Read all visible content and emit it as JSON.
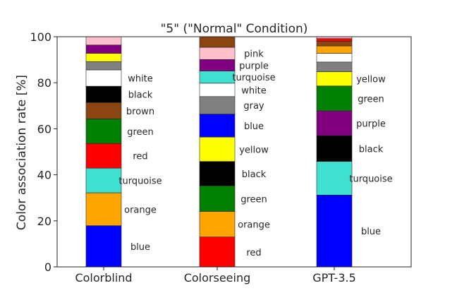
{
  "chart_data": {
    "type": "bar",
    "stacked": true,
    "title": "\"5\" (\"Normal\" Condition)",
    "xlabel": "",
    "ylabel": "Color association rate [%]",
    "ylim": [
      0,
      100
    ],
    "yticks": [
      0,
      20,
      40,
      60,
      80,
      100
    ],
    "grid": false,
    "categories": [
      "Colorblind",
      "Colorseeing",
      "GPT-3.5"
    ],
    "bars": [
      {
        "category": "Colorblind",
        "segments": [
          {
            "color_name": "blue",
            "value": 17.9,
            "color": "#0000ff",
            "label": "blue"
          },
          {
            "color_name": "orange",
            "value": 14.3,
            "color": "#ffa500",
            "label": "orange"
          },
          {
            "color_name": "turquoise",
            "value": 10.7,
            "color": "#40e0d0",
            "label": "turquoise"
          },
          {
            "color_name": "red",
            "value": 10.7,
            "color": "#ff0000",
            "label": "red"
          },
          {
            "color_name": "green",
            "value": 10.7,
            "color": "#008000",
            "label": "green"
          },
          {
            "color_name": "brown",
            "value": 7.1,
            "color": "#8b4513",
            "label": "brown"
          },
          {
            "color_name": "black",
            "value": 7.1,
            "color": "#000000",
            "label": "black"
          },
          {
            "color_name": "white",
            "value": 7.1,
            "color": "#ffffff",
            "label": "white"
          },
          {
            "color_name": "gray",
            "value": 3.6,
            "color": "#808080",
            "label": ""
          },
          {
            "color_name": "yellow",
            "value": 3.6,
            "color": "#ffff00",
            "label": ""
          },
          {
            "color_name": "purple",
            "value": 3.6,
            "color": "#800080",
            "label": ""
          },
          {
            "color_name": "pink",
            "value": 3.6,
            "color": "#ffc0cb",
            "label": ""
          }
        ]
      },
      {
        "category": "Colorseeing",
        "segments": [
          {
            "color_name": "red",
            "value": 13.0,
            "color": "#ff0000",
            "label": "red"
          },
          {
            "color_name": "orange",
            "value": 11.1,
            "color": "#ffa500",
            "label": "orange"
          },
          {
            "color_name": "green",
            "value": 11.1,
            "color": "#008000",
            "label": "green"
          },
          {
            "color_name": "black",
            "value": 10.6,
            "color": "#000000",
            "label": "black"
          },
          {
            "color_name": "yellow",
            "value": 10.6,
            "color": "#ffff00",
            "label": "yellow"
          },
          {
            "color_name": "blue",
            "value": 10.0,
            "color": "#0000ff",
            "label": "blue"
          },
          {
            "color_name": "gray",
            "value": 7.6,
            "color": "#808080",
            "label": "gray"
          },
          {
            "color_name": "white",
            "value": 5.8,
            "color": "#ffffff",
            "label": "white"
          },
          {
            "color_name": "turquoise",
            "value": 5.3,
            "color": "#40e0d0",
            "label": "turquoise"
          },
          {
            "color_name": "purple",
            "value": 5.0,
            "color": "#800080",
            "label": "purple"
          },
          {
            "color_name": "pink",
            "value": 5.3,
            "color": "#ffc0cb",
            "label": "pink"
          },
          {
            "color_name": "brown",
            "value": 4.6,
            "color": "#8b4513",
            "label": ""
          }
        ]
      },
      {
        "category": "GPT-3.5",
        "segments": [
          {
            "color_name": "blue",
            "value": 31.2,
            "color": "#0000ff",
            "label": "blue"
          },
          {
            "color_name": "turquoise",
            "value": 14.6,
            "color": "#40e0d0",
            "label": "turquoise"
          },
          {
            "color_name": "black",
            "value": 11.2,
            "color": "#000000",
            "label": "black"
          },
          {
            "color_name": "purple",
            "value": 10.8,
            "color": "#800080",
            "label": "purple"
          },
          {
            "color_name": "green",
            "value": 10.8,
            "color": "#008000",
            "label": "green"
          },
          {
            "color_name": "yellow",
            "value": 6.2,
            "color": "#ffff00",
            "label": "yellow"
          },
          {
            "color_name": "gray",
            "value": 4.2,
            "color": "#808080",
            "label": ""
          },
          {
            "color_name": "white",
            "value": 3.8,
            "color": "#ffffff",
            "label": ""
          },
          {
            "color_name": "orange",
            "value": 3.2,
            "color": "#ffa500",
            "label": ""
          },
          {
            "color_name": "brown",
            "value": 2.0,
            "color": "#8b4513",
            "label": ""
          },
          {
            "color_name": "red",
            "value": 1.2,
            "color": "#ff0000",
            "label": ""
          },
          {
            "color_name": "pink",
            "value": 0.8,
            "color": "#ffc0cb",
            "label": ""
          }
        ]
      }
    ]
  }
}
